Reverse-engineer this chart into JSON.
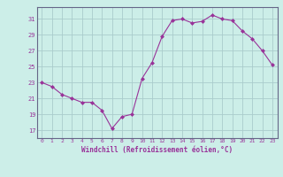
{
  "x": [
    0,
    1,
    2,
    3,
    4,
    5,
    6,
    7,
    8,
    9,
    10,
    11,
    12,
    13,
    14,
    15,
    16,
    17,
    18,
    19,
    20,
    21,
    22,
    23
  ],
  "y": [
    23,
    22.5,
    21.5,
    21,
    20.5,
    20.5,
    19.5,
    17.2,
    18.7,
    19.0,
    23.5,
    25.5,
    28.8,
    30.8,
    31.0,
    30.5,
    30.7,
    31.5,
    31.0,
    30.8,
    29.5,
    28.5,
    27.0,
    25.2
  ],
  "line_color": "#993399",
  "marker_color": "#993399",
  "bg_color": "#cceee8",
  "grid_color": "#aacccc",
  "xlabel": "Windchill (Refroidissement éolien,°C)",
  "xlabel_color": "#993399",
  "tick_color": "#993399",
  "ylim": [
    16,
    32.5
  ],
  "yticks": [
    17,
    19,
    21,
    23,
    25,
    27,
    29,
    31
  ],
  "xticks": [
    0,
    1,
    2,
    3,
    4,
    5,
    6,
    7,
    8,
    9,
    10,
    11,
    12,
    13,
    14,
    15,
    16,
    17,
    18,
    19,
    20,
    21,
    22,
    23
  ],
  "xlim": [
    -0.5,
    23.5
  ]
}
